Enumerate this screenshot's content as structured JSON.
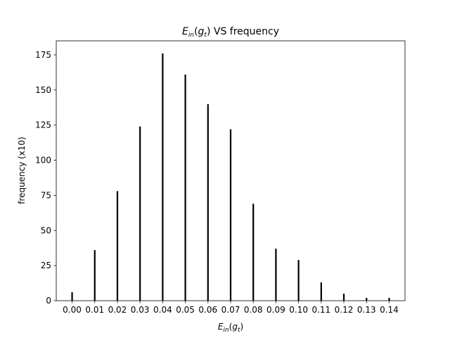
{
  "chart_data": {
    "type": "bar",
    "title": {
      "main": "E",
      "main_sub": "in",
      "open": "(",
      "arg": "g",
      "arg_sub": "t",
      "close": ")",
      "rest": " VS frequency"
    },
    "xlabel": {
      "main": "E",
      "main_sub": "in",
      "open": "(",
      "arg": "g",
      "arg_sub": "t",
      "close": ")"
    },
    "ylabel": "frequency (x10)",
    "x": [
      0.0,
      0.01,
      0.02,
      0.03,
      0.04,
      0.05,
      0.06,
      0.07,
      0.08,
      0.09,
      0.1,
      0.11,
      0.12,
      0.13,
      0.14
    ],
    "values": [
      6,
      36,
      78,
      124,
      176,
      161,
      140,
      122,
      69,
      37,
      29,
      13,
      5,
      2,
      2
    ],
    "xticks": [
      "0.00",
      "0.01",
      "0.02",
      "0.03",
      "0.04",
      "0.05",
      "0.06",
      "0.07",
      "0.08",
      "0.09",
      "0.10",
      "0.11",
      "0.12",
      "0.13",
      "0.14"
    ],
    "yticks": [
      0,
      25,
      50,
      75,
      100,
      125,
      150,
      175
    ],
    "ylim": [
      0,
      185
    ],
    "xlim": [
      -0.007,
      0.147
    ],
    "bar_color": "#000000",
    "grid": false,
    "legend": "none"
  }
}
